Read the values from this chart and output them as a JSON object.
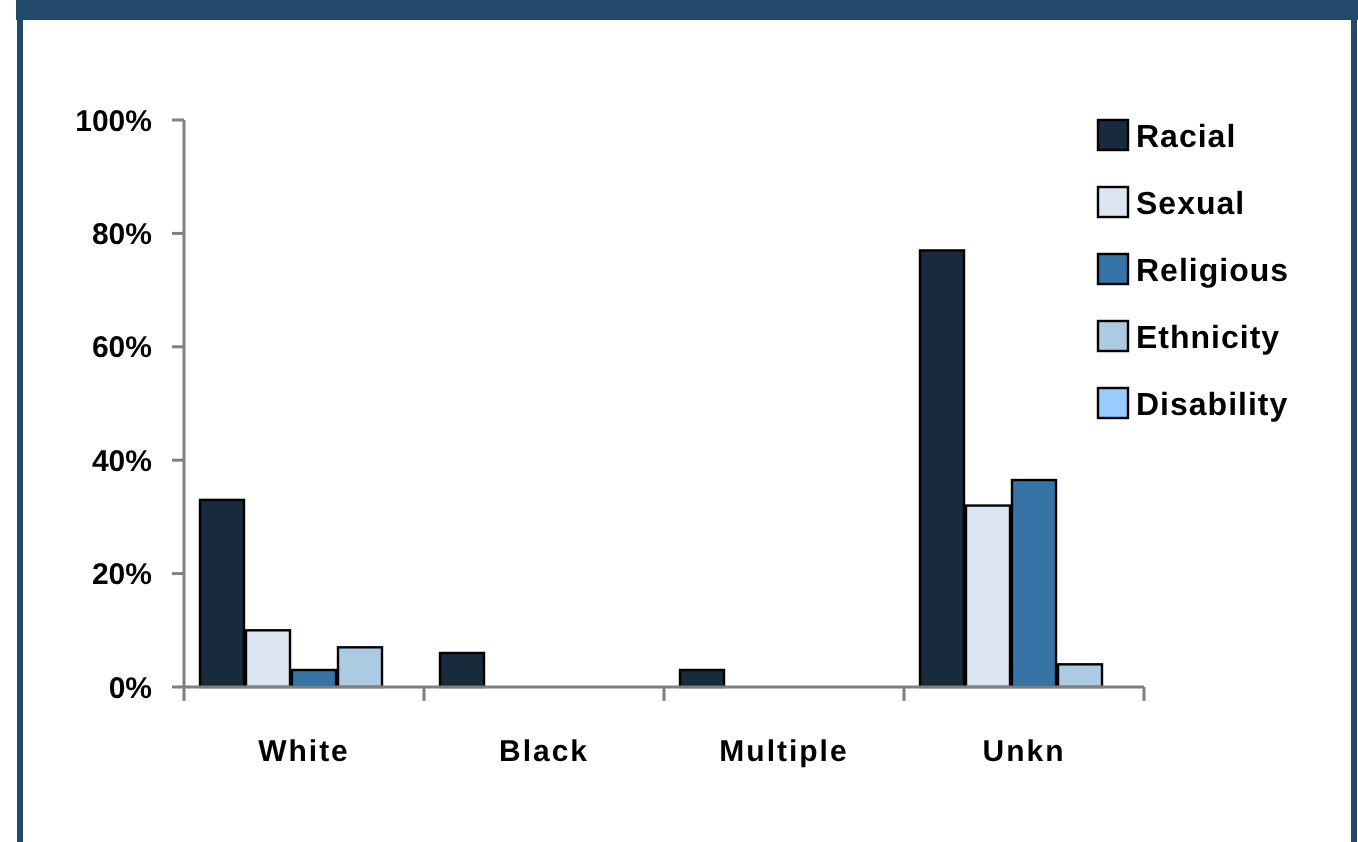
{
  "chart_data": {
    "type": "bar",
    "categories": [
      "White",
      "Black",
      "Multiple",
      "Unkn"
    ],
    "series": [
      {
        "name": "Racial",
        "color": "#172b3c",
        "values": [
          33,
          6,
          3,
          77
        ]
      },
      {
        "name": "Sexual",
        "color": "#dce6f2",
        "values": [
          10,
          0,
          0,
          32
        ]
      },
      {
        "name": "Religious",
        "color": "#3674a8",
        "values": [
          3,
          0,
          0,
          36.5
        ]
      },
      {
        "name": "Ethnicity",
        "color": "#abcbe3",
        "values": [
          7,
          0,
          0,
          4
        ]
      },
      {
        "name": "Disability",
        "color": "#99ccff",
        "values": [
          0,
          0,
          0,
          0
        ]
      }
    ],
    "ylim": [
      0,
      100
    ],
    "yticks": [
      {
        "value": 0,
        "label": "0%"
      },
      {
        "value": 20,
        "label": "20%"
      },
      {
        "value": 40,
        "label": "40%"
      },
      {
        "value": 60,
        "label": "60%"
      },
      {
        "value": 80,
        "label": "80%"
      },
      {
        "value": 100,
        "label": "100%"
      }
    ],
    "grid": false,
    "legend": "top right"
  }
}
